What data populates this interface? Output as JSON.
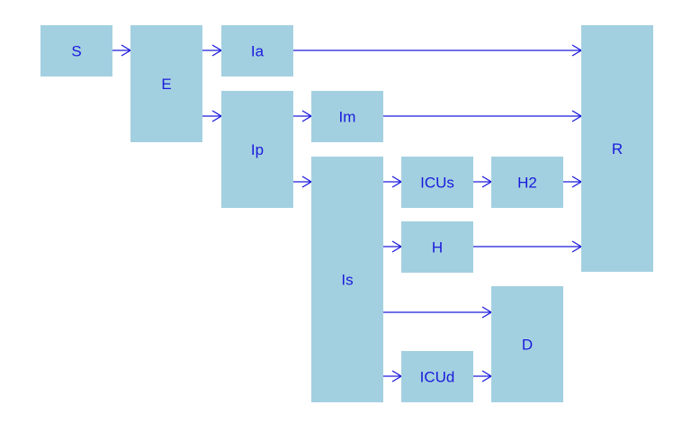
{
  "colors": {
    "box_fill": "#a3d0e0",
    "arrow": "#1a1adc",
    "text": "#1a1adc"
  },
  "nodes": {
    "S": "S",
    "E": "E",
    "Ia": "Ia",
    "Ip": "Ip",
    "Im": "Im",
    "Is": "Is",
    "ICUs": "ICUs",
    "H2": "H2",
    "H": "H",
    "ICUd": "ICUd",
    "D": "D",
    "R": "R"
  },
  "edges": [
    {
      "from": "S",
      "to": "E"
    },
    {
      "from": "E",
      "to": "Ia"
    },
    {
      "from": "E",
      "to": "Ip"
    },
    {
      "from": "Ia",
      "to": "R"
    },
    {
      "from": "Ip",
      "to": "Im"
    },
    {
      "from": "Ip",
      "to": "Is"
    },
    {
      "from": "Im",
      "to": "R"
    },
    {
      "from": "Is",
      "to": "ICUs"
    },
    {
      "from": "ICUs",
      "to": "H2"
    },
    {
      "from": "H2",
      "to": "R"
    },
    {
      "from": "Is",
      "to": "H"
    },
    {
      "from": "H",
      "to": "R"
    },
    {
      "from": "Is",
      "to": "D"
    },
    {
      "from": "Is",
      "to": "ICUd"
    },
    {
      "from": "ICUd",
      "to": "D"
    }
  ]
}
